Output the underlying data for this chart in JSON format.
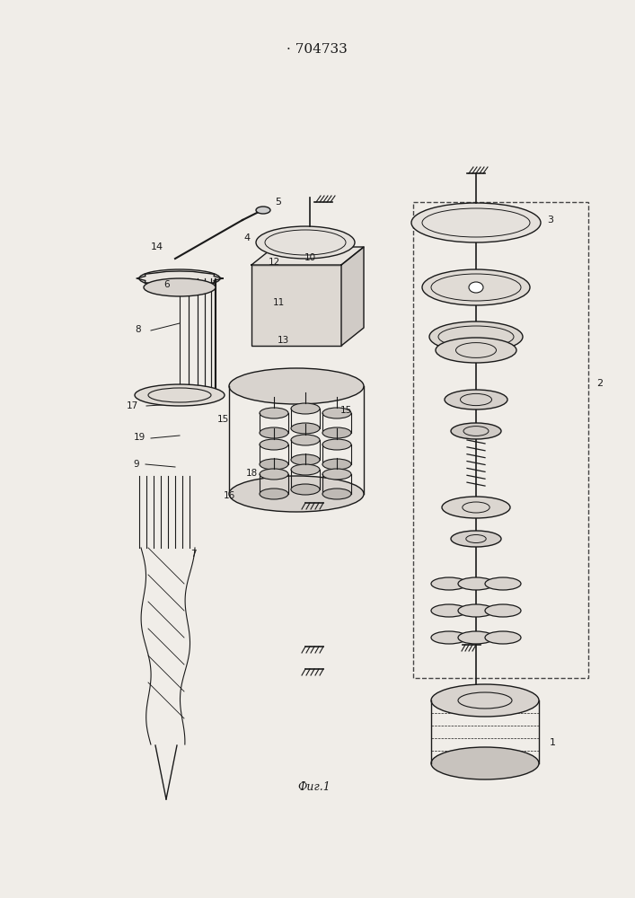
{
  "title": "704733",
  "fig_label": "Фиг.1",
  "bg_color": "#f0ede8",
  "line_color": "#1a1a1a",
  "line_width": 1.0,
  "fig_width": 7.07,
  "fig_height": 10.0,
  "dpi": 100
}
